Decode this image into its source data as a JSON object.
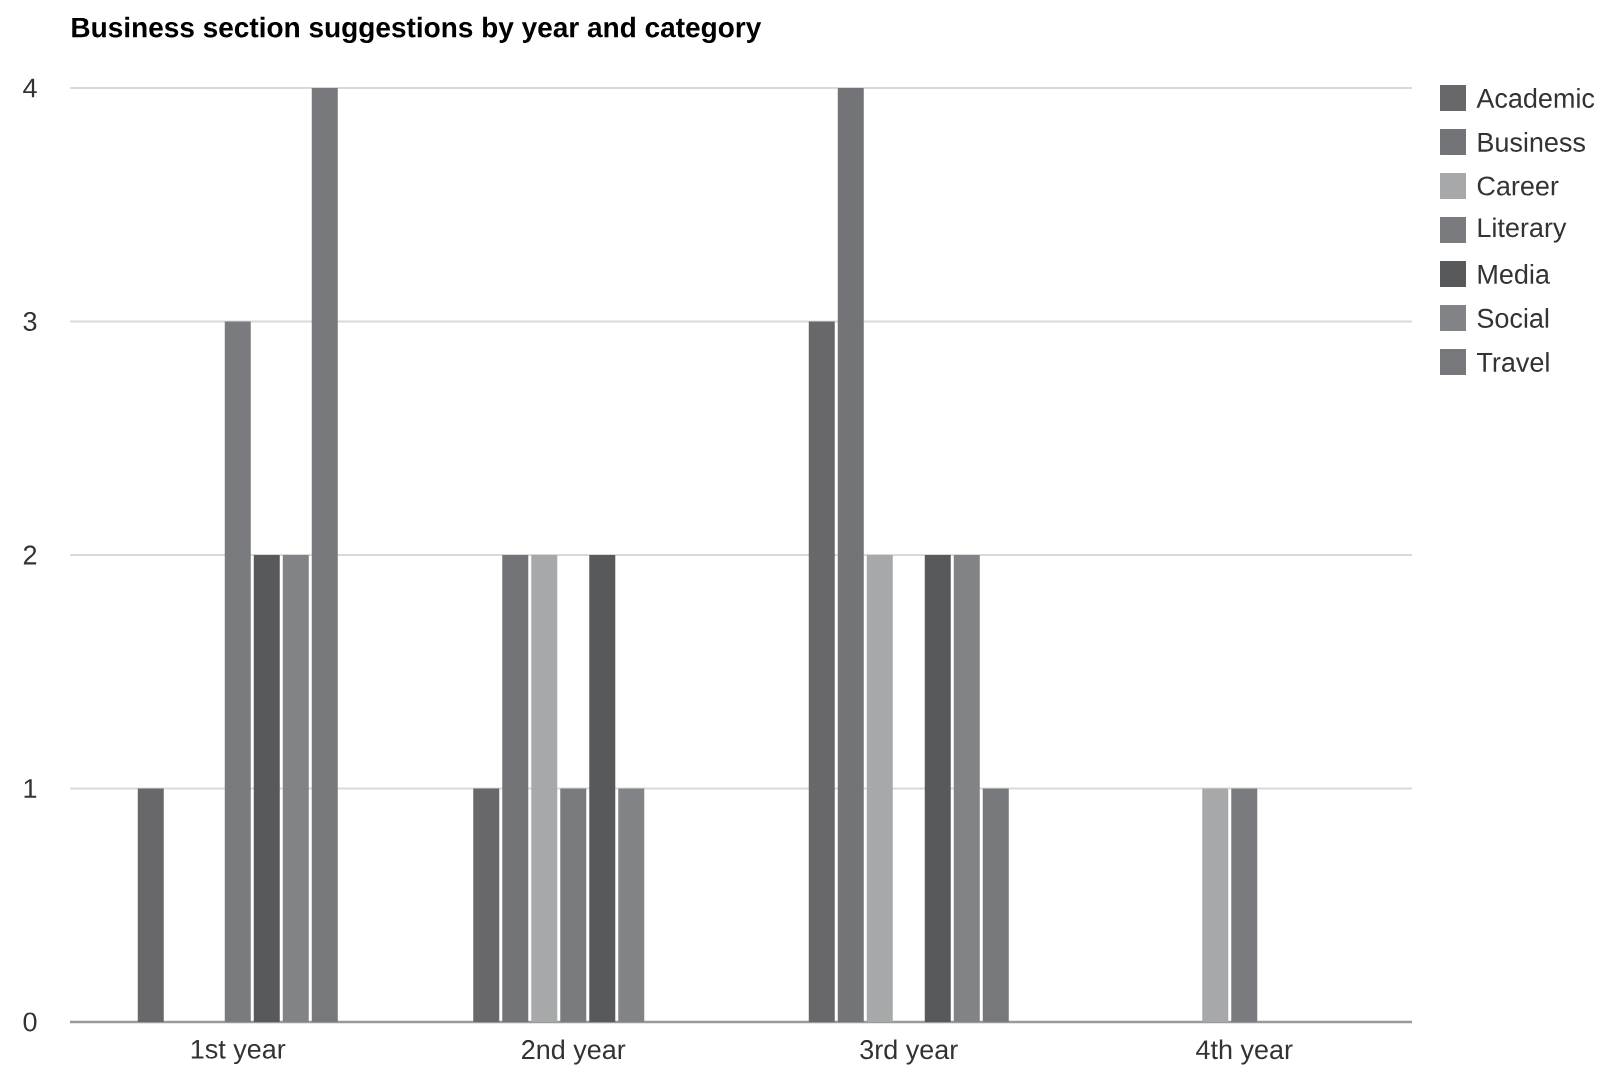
{
  "chart_data": {
    "type": "bar",
    "title": "Business section suggestions by year and category",
    "categories": [
      "1st year",
      "2nd year",
      "3rd year",
      "4th year"
    ],
    "series": [
      {
        "name": "Academic",
        "color": "#68686a",
        "values": [
          1,
          1,
          3,
          0
        ]
      },
      {
        "name": "Business",
        "color": "#737477",
        "values": [
          0,
          2,
          4,
          0
        ]
      },
      {
        "name": "Career",
        "color": "#a7a8aa",
        "values": [
          0,
          2,
          2,
          1
        ]
      },
      {
        "name": "Literary",
        "color": "#7a7b7e",
        "values": [
          3,
          1,
          0,
          1
        ]
      },
      {
        "name": "Media",
        "color": "#58595b",
        "values": [
          2,
          2,
          2,
          0
        ]
      },
      {
        "name": "Social",
        "color": "#828386",
        "values": [
          2,
          1,
          2,
          0
        ]
      },
      {
        "name": "Travel",
        "color": "#77787b",
        "values": [
          4,
          0,
          1,
          0
        ]
      }
    ],
    "ylim": [
      0,
      4
    ],
    "yticks": [
      0,
      1,
      2,
      3,
      4
    ],
    "grid": "y",
    "legend": "right"
  }
}
